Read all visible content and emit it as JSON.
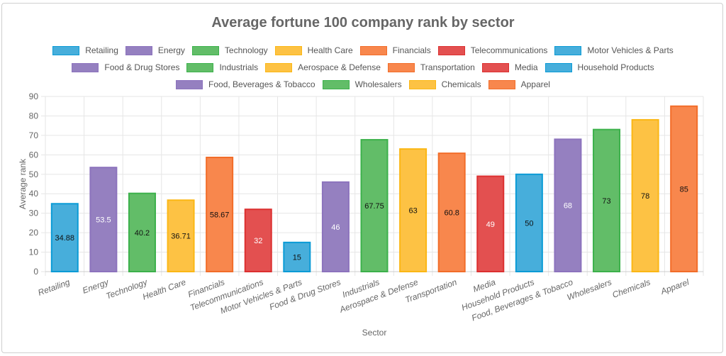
{
  "chart_data": {
    "type": "bar",
    "title": "Average fortune 100 company rank by sector",
    "xlabel": "Sector",
    "ylabel": "Average rank",
    "ylim": [
      0,
      90
    ],
    "yticks": [
      0,
      10,
      20,
      30,
      40,
      50,
      60,
      70,
      80,
      90
    ],
    "grid": true,
    "legend_position": "top",
    "categories": [
      "Retailing",
      "Energy",
      "Technology",
      "Health Care",
      "Financials",
      "Telecommunications",
      "Motor Vehicles & Parts",
      "Food & Drug Stores",
      "Industrials",
      "Aerospace & Defense",
      "Transportation",
      "Media",
      "Household Products",
      "Food, Beverages & Tobacco",
      "Wholesalers",
      "Chemicals",
      "Apparel"
    ],
    "values": [
      34.88,
      53.5,
      40.2,
      36.71,
      58.67,
      32,
      15,
      46,
      67.75,
      63,
      60.8,
      49,
      50,
      68,
      73,
      78,
      85
    ],
    "data_labels": [
      "34.88",
      "53.5",
      "40.2",
      "36.71",
      "58.67",
      "32",
      "15",
      "46",
      "67.75",
      "63",
      "60.8",
      "49",
      "50",
      "68",
      "73",
      "78",
      "85"
    ],
    "colors": [
      "#47aedb",
      "#9580c0",
      "#62bd68",
      "#fdc244",
      "#f8874d",
      "#e35050",
      "#47aedb",
      "#9580c0",
      "#62bd68",
      "#fdc244",
      "#f8874d",
      "#e35050",
      "#47aedb",
      "#9580c0",
      "#62bd68",
      "#fdc244",
      "#f8874d"
    ],
    "border_colors": [
      "#0a9bd6",
      "#8c73bd",
      "#3cb14b",
      "#fbb715",
      "#f26d29",
      "#dc3030",
      "#0a9bd6",
      "#8c73bd",
      "#3cb14b",
      "#fbb715",
      "#f26d29",
      "#dc3030",
      "#0a9bd6",
      "#8c73bd",
      "#3cb14b",
      "#fbb715",
      "#f26d29"
    ],
    "label_colors": [
      "#111",
      "#fff",
      "#111",
      "#111",
      "#111",
      "#fff",
      "#111",
      "#fff",
      "#111",
      "#111",
      "#111",
      "#fff",
      "#111",
      "#fff",
      "#111",
      "#111",
      "#111"
    ]
  }
}
